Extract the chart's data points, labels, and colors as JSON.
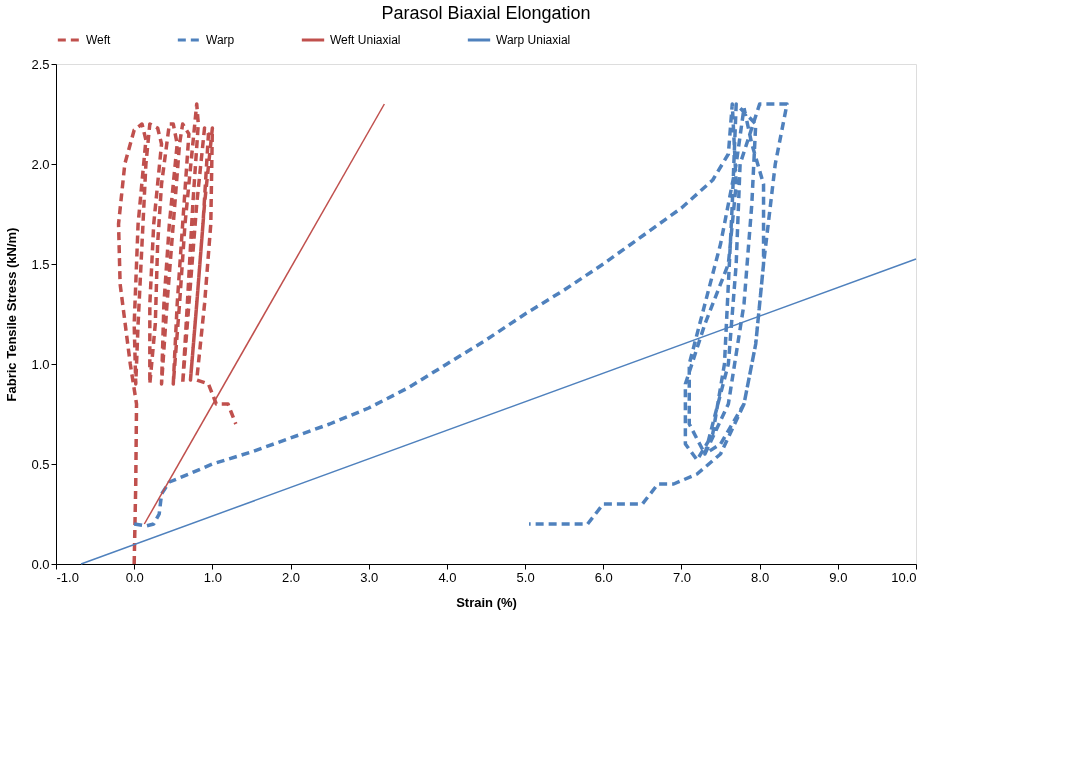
{
  "chart_data": {
    "type": "line",
    "title": "Parasol Biaxial Elongation",
    "xlabel": "Strain (%)",
    "ylabel": "Fabric Tensile Stress (kN/m)",
    "xlim": [
      -1,
      10
    ],
    "xticks": [
      {
        "value": -1,
        "label": "-1.0"
      },
      {
        "value": 0,
        "label": "0.0"
      },
      {
        "value": 1,
        "label": "1.0"
      },
      {
        "value": 2,
        "label": "2.0"
      },
      {
        "value": 3,
        "label": "3.0"
      },
      {
        "value": 4,
        "label": "4.0"
      },
      {
        "value": 5,
        "label": "5.0"
      },
      {
        "value": 6,
        "label": "6.0"
      },
      {
        "value": 7,
        "label": "7.0"
      },
      {
        "value": 8,
        "label": "8.0"
      },
      {
        "value": 9,
        "label": "9.0"
      },
      {
        "value": 10,
        "label": "10.0"
      }
    ],
    "ylim": [
      0,
      2.5
    ],
    "yticks": [
      {
        "value": 0,
        "label": "0.0"
      },
      {
        "value": 0.5,
        "label": "0.5"
      },
      {
        "value": 1,
        "label": "1.0"
      },
      {
        "value": 1.5,
        "label": "1.5"
      },
      {
        "value": 2,
        "label": "2.0"
      },
      {
        "value": 2.5,
        "label": "2.5"
      }
    ],
    "grid": false,
    "legend": "top",
    "marker": "none",
    "series": [
      {
        "name": "Weft",
        "color": "#c0504d",
        "line_style": "dashed",
        "x": [
          0,
          0.02,
          0.03,
          -0.05,
          -0.18,
          -0.2,
          -0.12,
          0.0,
          0.1,
          0.15,
          0.05,
          0.0,
          0.02,
          0.05,
          0.1,
          0.15,
          0.2,
          0.3,
          0.35,
          0.25,
          0.2,
          0.2,
          0.27,
          0.3,
          0.35,
          0.45,
          0.5,
          0.55,
          0.45,
          0.38,
          0.35,
          0.42,
          0.5,
          0.58,
          0.62,
          0.7,
          0.62,
          0.55,
          0.5,
          0.58,
          0.65,
          0.75,
          0.8,
          0.82,
          0.75,
          0.68,
          0.62,
          0.7,
          0.8,
          0.9,
          0.95,
          0.88,
          0.8,
          0.72,
          0.8,
          0.9,
          1.0,
          0.98,
          0.9,
          0.8,
          0.95,
          1.0,
          1.05,
          1.2,
          1.25,
          1.3
        ],
        "values": [
          0,
          0.4,
          0.8,
          1.0,
          1.4,
          1.7,
          2.0,
          2.17,
          2.2,
          2.12,
          1.7,
          1.2,
          0.9,
          1.2,
          1.6,
          2.0,
          2.2,
          2.18,
          2.1,
          1.7,
          1.3,
          0.9,
          1.2,
          1.6,
          1.9,
          2.2,
          2.2,
          2.1,
          1.7,
          1.3,
          0.9,
          1.3,
          1.7,
          2.1,
          2.2,
          2.15,
          1.7,
          1.3,
          0.9,
          1.3,
          1.7,
          2.1,
          2.3,
          2.2,
          1.8,
          1.3,
          0.9,
          1.3,
          1.8,
          2.18,
          2.15,
          1.7,
          1.3,
          0.92,
          1.3,
          1.8,
          2.18,
          1.7,
          1.3,
          0.92,
          0.9,
          0.85,
          0.8,
          0.8,
          0.75,
          0.7
        ]
      },
      {
        "name": "Warp",
        "color": "#4f81bd",
        "line_style": "dashed",
        "x": [
          0,
          0.15,
          0.25,
          0.32,
          0.35,
          0.45,
          0.7,
          1.0,
          1.5,
          2.0,
          2.5,
          3.0,
          3.5,
          4.0,
          4.5,
          5.0,
          5.5,
          6.0,
          6.5,
          7.0,
          7.4,
          7.6,
          7.65,
          7.7,
          7.6,
          7.3,
          7.05,
          7.05,
          7.2,
          7.4,
          7.55,
          7.6,
          7.65,
          7.7,
          7.95,
          7.9,
          7.8,
          7.6,
          7.3,
          7.1,
          7.1,
          7.3,
          7.5,
          7.7,
          7.8,
          7.9,
          8.05,
          8.05,
          7.95,
          7.8,
          7.5,
          7.3,
          7.4,
          7.6,
          7.7,
          7.75,
          8.0,
          8.35,
          8.2,
          8.05,
          7.95,
          7.8,
          7.5,
          7.2,
          6.9,
          6.7,
          6.6,
          6.5,
          6.2,
          6.0,
          5.9,
          5.8,
          5.4,
          5.05
        ],
        "values": [
          0.2,
          0.19,
          0.2,
          0.25,
          0.35,
          0.41,
          0.45,
          0.5,
          0.56,
          0.63,
          0.7,
          0.78,
          0.88,
          1.0,
          1.12,
          1.25,
          1.37,
          1.5,
          1.64,
          1.78,
          1.92,
          2.05,
          2.3,
          1.9,
          1.5,
          1.2,
          0.9,
          0.6,
          0.52,
          0.65,
          1.0,
          1.4,
          1.8,
          2.3,
          2.2,
          1.8,
          1.3,
          0.8,
          0.55,
          0.7,
          1.0,
          1.3,
          1.6,
          2.0,
          2.28,
          2.1,
          1.9,
          1.5,
          1.1,
          0.8,
          0.6,
          0.55,
          0.7,
          1.0,
          1.5,
          2.0,
          2.3,
          2.3,
          2.0,
          1.5,
          1.1,
          0.8,
          0.55,
          0.45,
          0.4,
          0.4,
          0.35,
          0.3,
          0.3,
          0.3,
          0.25,
          0.2,
          0.2,
          0.2
        ]
      },
      {
        "name": "Weft Uniaxial",
        "color": "#c0504d",
        "line_style": "solid",
        "x": [
          0.13,
          3.2
        ],
        "values": [
          0.2,
          2.3
        ]
      },
      {
        "name": "Warp Uniaxial",
        "color": "#4f81bd",
        "line_style": "solid",
        "x": [
          -0.68,
          10.0
        ],
        "values": [
          0,
          1.525
        ]
      }
    ]
  }
}
